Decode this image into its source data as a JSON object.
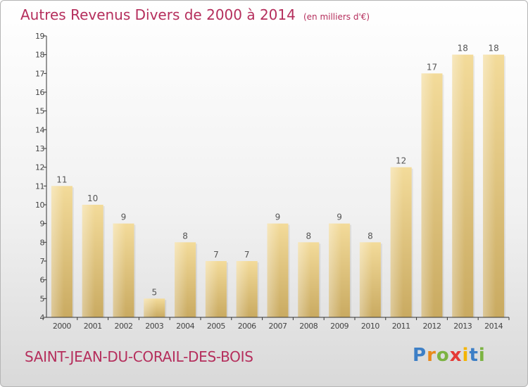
{
  "header": {
    "title": "Autres Revenus Divers de 2000 à 2014",
    "unit": "(en milliers d'€)"
  },
  "footer": {
    "commune": "SAINT-JEAN-DU-CORAIL-DES-BOIS",
    "logo_letters": [
      "P",
      "r",
      "o",
      "x",
      "i",
      "t",
      "i"
    ],
    "logo_colors": [
      "#3d7fc6",
      "#e98a1c",
      "#7cb342",
      "#e53935",
      "#f4b400",
      "#3d7fc6",
      "#7cb342"
    ]
  },
  "colors": {
    "title": "#b52e5c",
    "bar_light": "#f3db9a",
    "bar_dark": "#c9aa61",
    "axis": "#333333"
  },
  "chart_data": {
    "type": "bar",
    "categories": [
      "2000",
      "2001",
      "2002",
      "2003",
      "2004",
      "2005",
      "2006",
      "2007",
      "2008",
      "2009",
      "2010",
      "2011",
      "2012",
      "2013",
      "2014"
    ],
    "values": [
      11,
      10,
      9,
      5,
      8,
      7,
      7,
      9,
      8,
      9,
      8,
      12,
      17,
      18,
      18
    ],
    "data_labels": [
      "11",
      "10",
      "9",
      "5",
      "8",
      "7",
      "7",
      "9",
      "8",
      "9",
      "8",
      "12",
      "17",
      "18",
      "18"
    ],
    "y_ticks": [
      4,
      5,
      6,
      7,
      8,
      9,
      10,
      11,
      12,
      13,
      14,
      15,
      16,
      17,
      18,
      19
    ],
    "ylim": [
      4,
      19
    ],
    "grid": false
  }
}
